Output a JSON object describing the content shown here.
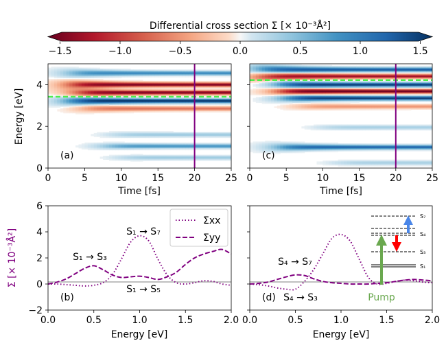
{
  "figure": {
    "colorbar": {
      "title": "Differential cross section Σ [× 10⁻³Å²]",
      "ticks": [
        "−1.5",
        "−1.0",
        "−0.5",
        "0.0",
        "0.5",
        "1.0",
        "1.5"
      ],
      "tick_values": [
        -1.5,
        -1.0,
        -0.5,
        0.0,
        0.5,
        1.0,
        1.5
      ],
      "range": [
        -1.6,
        1.6
      ]
    },
    "top": {
      "xlabel": "Time [fs]",
      "ylabel": "Energy [eV]",
      "xticks": [
        "0",
        "5",
        "10",
        "15",
        "20",
        "25"
      ],
      "yticks": [
        "0",
        "2",
        "4"
      ],
      "panel_a": {
        "label": "(a)",
        "guide_energy": 3.42,
        "marker_time": 20
      },
      "panel_c": {
        "label": "(c)",
        "guide_energy": 4.22,
        "marker_time": 20
      }
    },
    "bottom": {
      "xlabel": "Energy [eV]",
      "ylabel": "Σ [× 10⁻³Å²]",
      "xticks": [
        "0.0",
        "0.5",
        "1.0",
        "1.5",
        "2.0"
      ],
      "yticks": [
        "−2",
        "0",
        "2",
        "4",
        "6"
      ],
      "panel_b": {
        "label": "(b)",
        "annotations": [
          {
            "text": "S₁ → S₇"
          },
          {
            "text": "S₁ → S₃"
          },
          {
            "text": "S₁ → S₅"
          }
        ]
      },
      "panel_d": {
        "label": "(d)",
        "annotations": [
          {
            "text": "S₄ → S₇"
          },
          {
            "text": "S₄ → S₃"
          }
        ],
        "inset": {
          "levels": [
            "S₇",
            "S₄",
            "S₃",
            "S₁"
          ],
          "pump_label": "Pump"
        }
      },
      "legend": [
        "Σxx",
        "Σyy"
      ]
    },
    "colors": {
      "purple": "#800080",
      "guide": "#4ded4d",
      "pump": "#6aa84f",
      "probe_up": "#4a86e8",
      "probe_down": "#ff0000"
    }
  },
  "chart_data": [
    {
      "type": "heatmap",
      "panel": "(a)",
      "title": "",
      "xlabel": "Time [fs]",
      "ylabel": "Energy [eV]",
      "xlim": [
        0,
        25
      ],
      "ylim": [
        0,
        5
      ],
      "bands": [
        {
          "energy": 4.55,
          "value": 0.9,
          "onset": 3
        },
        {
          "energy": 4.0,
          "value": -1.5,
          "onset": 3
        },
        {
          "energy": 3.62,
          "value": -1.5,
          "onset": 4
        },
        {
          "energy": 3.22,
          "value": 1.6,
          "onset": 3
        },
        {
          "energy": 2.85,
          "value": -0.7,
          "onset": 5
        },
        {
          "energy": 1.6,
          "value": 0.35,
          "onset": 9
        },
        {
          "energy": 1.05,
          "value": 0.8,
          "onset": 8
        },
        {
          "energy": 0.5,
          "value": 0.35,
          "onset": 10
        }
      ],
      "guide_energy": 3.42,
      "marker_time": 20
    },
    {
      "type": "heatmap",
      "panel": "(c)",
      "title": "",
      "xlabel": "Time [fs]",
      "ylabel": "Energy [eV]",
      "xlim": [
        0,
        25
      ],
      "ylim": [
        0,
        5
      ],
      "bands": [
        {
          "energy": 4.72,
          "value": 1.3,
          "onset": 1
        },
        {
          "energy": 4.4,
          "value": -1.3,
          "onset": 1
        },
        {
          "energy": 4.0,
          "value": 1.5,
          "onset": 4
        },
        {
          "energy": 3.68,
          "value": -1.6,
          "onset": 4
        },
        {
          "energy": 3.35,
          "value": 1.5,
          "onset": 5
        },
        {
          "energy": 2.95,
          "value": -0.5,
          "onset": 7
        },
        {
          "energy": 1.95,
          "value": 0.3,
          "onset": 10
        },
        {
          "energy": 1.0,
          "value": 1.2,
          "onset": 4
        },
        {
          "energy": 0.25,
          "value": 0.3,
          "onset": 12
        }
      ],
      "guide_energy": 4.22,
      "marker_time": 20
    },
    {
      "type": "line",
      "panel": "(b)",
      "xlabel": "Energy [eV]",
      "ylabel": "Σ [× 10⁻³Å²]",
      "xlim": [
        0,
        2
      ],
      "ylim": [
        -2,
        6
      ],
      "x": [
        0.0,
        0.1,
        0.2,
        0.3,
        0.4,
        0.5,
        0.6,
        0.7,
        0.8,
        0.9,
        1.0,
        1.1,
        1.2,
        1.3,
        1.4,
        1.5,
        1.6,
        1.7,
        1.8,
        1.9,
        2.0
      ],
      "series": [
        {
          "name": "Σxx",
          "style": "dotted",
          "values": [
            0.0,
            0.0,
            -0.05,
            -0.1,
            -0.15,
            -0.1,
            0.1,
            0.7,
            1.9,
            3.2,
            3.7,
            3.3,
            1.9,
            0.7,
            0.1,
            0.0,
            0.1,
            0.25,
            0.2,
            0.0,
            -0.1
          ]
        },
        {
          "name": "Σyy",
          "style": "dashed",
          "values": [
            0.0,
            0.15,
            0.4,
            0.8,
            1.2,
            1.4,
            1.1,
            0.7,
            0.5,
            0.55,
            0.6,
            0.5,
            0.35,
            0.55,
            0.9,
            1.5,
            2.0,
            2.3,
            2.5,
            2.65,
            2.3
          ]
        }
      ]
    },
    {
      "type": "line",
      "panel": "(d)",
      "xlabel": "Energy [eV]",
      "ylabel": "",
      "xlim": [
        0,
        2
      ],
      "ylim": [
        -2,
        6
      ],
      "x": [
        0.0,
        0.1,
        0.2,
        0.3,
        0.4,
        0.5,
        0.6,
        0.7,
        0.8,
        0.9,
        1.0,
        1.1,
        1.2,
        1.3,
        1.4,
        1.5,
        1.6,
        1.7,
        1.8,
        1.9,
        2.0
      ],
      "series": [
        {
          "name": "Σxx",
          "style": "dotted",
          "values": [
            0.0,
            -0.05,
            -0.15,
            -0.3,
            -0.4,
            -0.4,
            0.2,
            1.1,
            2.3,
            3.5,
            3.8,
            3.3,
            1.9,
            0.5,
            0.0,
            0.05,
            0.2,
            0.3,
            0.25,
            0.15,
            0.1
          ]
        },
        {
          "name": "Σyy",
          "style": "dashed",
          "values": [
            0.0,
            0.05,
            0.15,
            0.35,
            0.55,
            0.7,
            0.65,
            0.4,
            0.2,
            0.1,
            0.05,
            0.0,
            0.0,
            0.0,
            0.05,
            0.1,
            0.2,
            0.3,
            0.35,
            0.3,
            0.25
          ]
        }
      ]
    }
  ]
}
